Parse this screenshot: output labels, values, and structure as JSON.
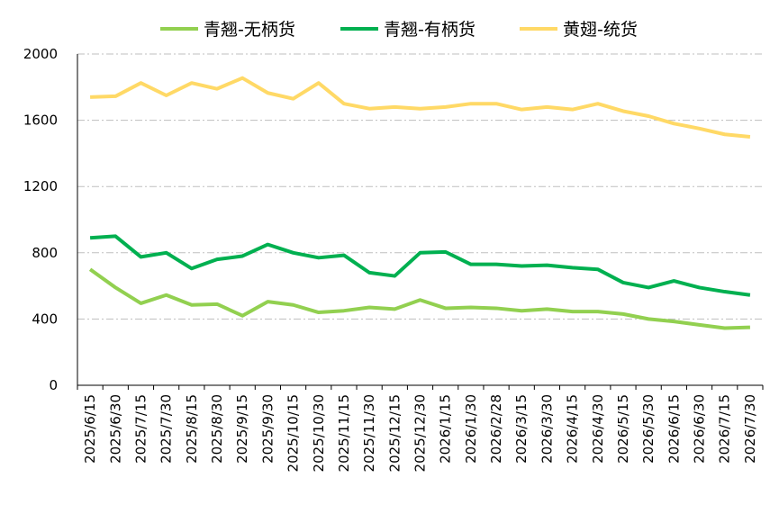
{
  "chart_data": {
    "type": "line",
    "categories": [
      "2025/6/15",
      "2025/6/30",
      "2025/7/15",
      "2025/7/30",
      "2025/8/15",
      "2025/8/30",
      "2025/9/15",
      "2025/9/30",
      "2025/10/15",
      "2025/10/30",
      "2025/11/15",
      "2025/11/30",
      "2025/12/15",
      "2025/12/30",
      "2026/1/15",
      "2026/1/30",
      "2026/2/28",
      "2026/3/15",
      "2026/3/30",
      "2026/4/15",
      "2026/4/30",
      "2026/5/15",
      "2026/5/30",
      "2026/6/15",
      "2026/6/30",
      "2026/7/15",
      "2026/7/30"
    ],
    "series": [
      {
        "name": "青翘-无柄货",
        "color": "#92d050",
        "values": [
          700,
          590,
          495,
          545,
          485,
          490,
          420,
          505,
          485,
          440,
          450,
          470,
          460,
          515,
          465,
          470,
          465,
          450,
          460,
          445,
          445,
          430,
          400,
          385,
          365,
          345,
          350
        ]
      },
      {
        "name": "青翘-有柄货",
        "color": "#00b050",
        "values": [
          890,
          900,
          775,
          800,
          705,
          760,
          780,
          850,
          800,
          770,
          785,
          680,
          660,
          800,
          805,
          730,
          730,
          720,
          725,
          710,
          700,
          620,
          590,
          630,
          590,
          565,
          545
        ]
      },
      {
        "name": "黄翅-统货",
        "color": "#ffd966",
        "values": [
          1740,
          1745,
          1825,
          1750,
          1825,
          1790,
          1855,
          1765,
          1730,
          1825,
          1700,
          1670,
          1680,
          1670,
          1680,
          1700,
          1700,
          1665,
          1680,
          1665,
          1700,
          1655,
          1625,
          1580,
          1550,
          1515,
          1500
        ]
      }
    ],
    "ylim": [
      0,
      2000
    ],
    "yticks": [
      0,
      400,
      800,
      1200,
      1600,
      2000
    ],
    "grid": true,
    "legend": "top"
  }
}
